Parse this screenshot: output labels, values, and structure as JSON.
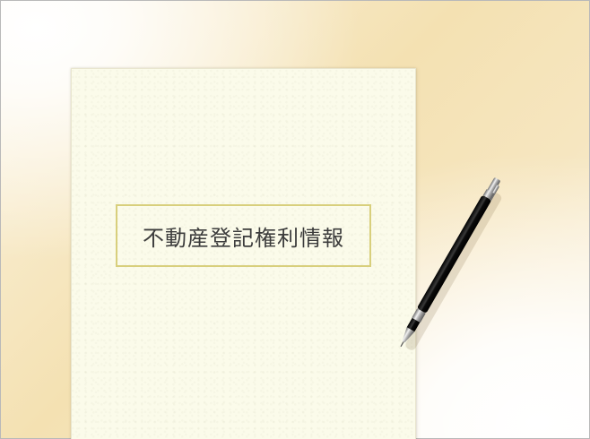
{
  "document": {
    "title": "不動産登記権利情報"
  },
  "icons": {
    "pen": "mechanical-pencil-icon"
  },
  "colors": {
    "background": "#f4e1b2",
    "paper": "#fbfbea",
    "frame_border": "#d8cf7c",
    "title_text": "#3c3c3c",
    "pen_body": "#111111"
  }
}
